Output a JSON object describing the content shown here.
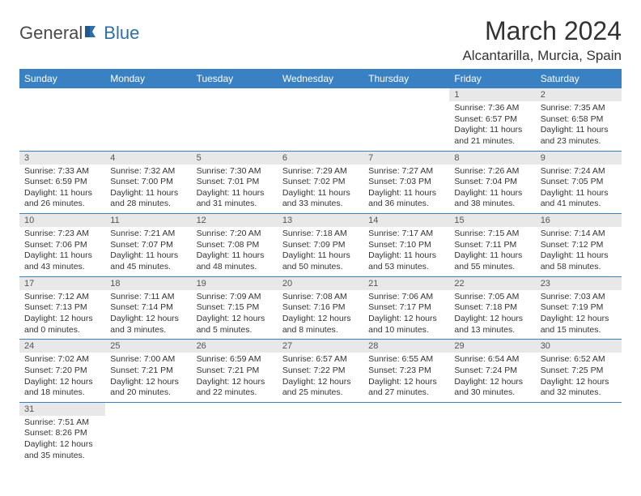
{
  "brand": {
    "part1": "General",
    "part2": "Blue"
  },
  "title": "March 2024",
  "location": "Alcantarilla, Murcia, Spain",
  "colors": {
    "header_bg": "#3a81c4",
    "header_text": "#ffffff",
    "daynum_bg": "#e8e8e8",
    "border": "#3a81c4",
    "logo_blue": "#2f6fa8",
    "text": "#333333"
  },
  "weekdays": [
    "Sunday",
    "Monday",
    "Tuesday",
    "Wednesday",
    "Thursday",
    "Friday",
    "Saturday"
  ],
  "weeks": [
    [
      null,
      null,
      null,
      null,
      null,
      {
        "n": "1",
        "sr": "Sunrise: 7:36 AM",
        "ss": "Sunset: 6:57 PM",
        "d1": "Daylight: 11 hours",
        "d2": "and 21 minutes."
      },
      {
        "n": "2",
        "sr": "Sunrise: 7:35 AM",
        "ss": "Sunset: 6:58 PM",
        "d1": "Daylight: 11 hours",
        "d2": "and 23 minutes."
      }
    ],
    [
      {
        "n": "3",
        "sr": "Sunrise: 7:33 AM",
        "ss": "Sunset: 6:59 PM",
        "d1": "Daylight: 11 hours",
        "d2": "and 26 minutes."
      },
      {
        "n": "4",
        "sr": "Sunrise: 7:32 AM",
        "ss": "Sunset: 7:00 PM",
        "d1": "Daylight: 11 hours",
        "d2": "and 28 minutes."
      },
      {
        "n": "5",
        "sr": "Sunrise: 7:30 AM",
        "ss": "Sunset: 7:01 PM",
        "d1": "Daylight: 11 hours",
        "d2": "and 31 minutes."
      },
      {
        "n": "6",
        "sr": "Sunrise: 7:29 AM",
        "ss": "Sunset: 7:02 PM",
        "d1": "Daylight: 11 hours",
        "d2": "and 33 minutes."
      },
      {
        "n": "7",
        "sr": "Sunrise: 7:27 AM",
        "ss": "Sunset: 7:03 PM",
        "d1": "Daylight: 11 hours",
        "d2": "and 36 minutes."
      },
      {
        "n": "8",
        "sr": "Sunrise: 7:26 AM",
        "ss": "Sunset: 7:04 PM",
        "d1": "Daylight: 11 hours",
        "d2": "and 38 minutes."
      },
      {
        "n": "9",
        "sr": "Sunrise: 7:24 AM",
        "ss": "Sunset: 7:05 PM",
        "d1": "Daylight: 11 hours",
        "d2": "and 41 minutes."
      }
    ],
    [
      {
        "n": "10",
        "sr": "Sunrise: 7:23 AM",
        "ss": "Sunset: 7:06 PM",
        "d1": "Daylight: 11 hours",
        "d2": "and 43 minutes."
      },
      {
        "n": "11",
        "sr": "Sunrise: 7:21 AM",
        "ss": "Sunset: 7:07 PM",
        "d1": "Daylight: 11 hours",
        "d2": "and 45 minutes."
      },
      {
        "n": "12",
        "sr": "Sunrise: 7:20 AM",
        "ss": "Sunset: 7:08 PM",
        "d1": "Daylight: 11 hours",
        "d2": "and 48 minutes."
      },
      {
        "n": "13",
        "sr": "Sunrise: 7:18 AM",
        "ss": "Sunset: 7:09 PM",
        "d1": "Daylight: 11 hours",
        "d2": "and 50 minutes."
      },
      {
        "n": "14",
        "sr": "Sunrise: 7:17 AM",
        "ss": "Sunset: 7:10 PM",
        "d1": "Daylight: 11 hours",
        "d2": "and 53 minutes."
      },
      {
        "n": "15",
        "sr": "Sunrise: 7:15 AM",
        "ss": "Sunset: 7:11 PM",
        "d1": "Daylight: 11 hours",
        "d2": "and 55 minutes."
      },
      {
        "n": "16",
        "sr": "Sunrise: 7:14 AM",
        "ss": "Sunset: 7:12 PM",
        "d1": "Daylight: 11 hours",
        "d2": "and 58 minutes."
      }
    ],
    [
      {
        "n": "17",
        "sr": "Sunrise: 7:12 AM",
        "ss": "Sunset: 7:13 PM",
        "d1": "Daylight: 12 hours",
        "d2": "and 0 minutes."
      },
      {
        "n": "18",
        "sr": "Sunrise: 7:11 AM",
        "ss": "Sunset: 7:14 PM",
        "d1": "Daylight: 12 hours",
        "d2": "and 3 minutes."
      },
      {
        "n": "19",
        "sr": "Sunrise: 7:09 AM",
        "ss": "Sunset: 7:15 PM",
        "d1": "Daylight: 12 hours",
        "d2": "and 5 minutes."
      },
      {
        "n": "20",
        "sr": "Sunrise: 7:08 AM",
        "ss": "Sunset: 7:16 PM",
        "d1": "Daylight: 12 hours",
        "d2": "and 8 minutes."
      },
      {
        "n": "21",
        "sr": "Sunrise: 7:06 AM",
        "ss": "Sunset: 7:17 PM",
        "d1": "Daylight: 12 hours",
        "d2": "and 10 minutes."
      },
      {
        "n": "22",
        "sr": "Sunrise: 7:05 AM",
        "ss": "Sunset: 7:18 PM",
        "d1": "Daylight: 12 hours",
        "d2": "and 13 minutes."
      },
      {
        "n": "23",
        "sr": "Sunrise: 7:03 AM",
        "ss": "Sunset: 7:19 PM",
        "d1": "Daylight: 12 hours",
        "d2": "and 15 minutes."
      }
    ],
    [
      {
        "n": "24",
        "sr": "Sunrise: 7:02 AM",
        "ss": "Sunset: 7:20 PM",
        "d1": "Daylight: 12 hours",
        "d2": "and 18 minutes."
      },
      {
        "n": "25",
        "sr": "Sunrise: 7:00 AM",
        "ss": "Sunset: 7:21 PM",
        "d1": "Daylight: 12 hours",
        "d2": "and 20 minutes."
      },
      {
        "n": "26",
        "sr": "Sunrise: 6:59 AM",
        "ss": "Sunset: 7:21 PM",
        "d1": "Daylight: 12 hours",
        "d2": "and 22 minutes."
      },
      {
        "n": "27",
        "sr": "Sunrise: 6:57 AM",
        "ss": "Sunset: 7:22 PM",
        "d1": "Daylight: 12 hours",
        "d2": "and 25 minutes."
      },
      {
        "n": "28",
        "sr": "Sunrise: 6:55 AM",
        "ss": "Sunset: 7:23 PM",
        "d1": "Daylight: 12 hours",
        "d2": "and 27 minutes."
      },
      {
        "n": "29",
        "sr": "Sunrise: 6:54 AM",
        "ss": "Sunset: 7:24 PM",
        "d1": "Daylight: 12 hours",
        "d2": "and 30 minutes."
      },
      {
        "n": "30",
        "sr": "Sunrise: 6:52 AM",
        "ss": "Sunset: 7:25 PM",
        "d1": "Daylight: 12 hours",
        "d2": "and 32 minutes."
      }
    ],
    [
      {
        "n": "31",
        "sr": "Sunrise: 7:51 AM",
        "ss": "Sunset: 8:26 PM",
        "d1": "Daylight: 12 hours",
        "d2": "and 35 minutes."
      },
      null,
      null,
      null,
      null,
      null,
      null
    ]
  ]
}
